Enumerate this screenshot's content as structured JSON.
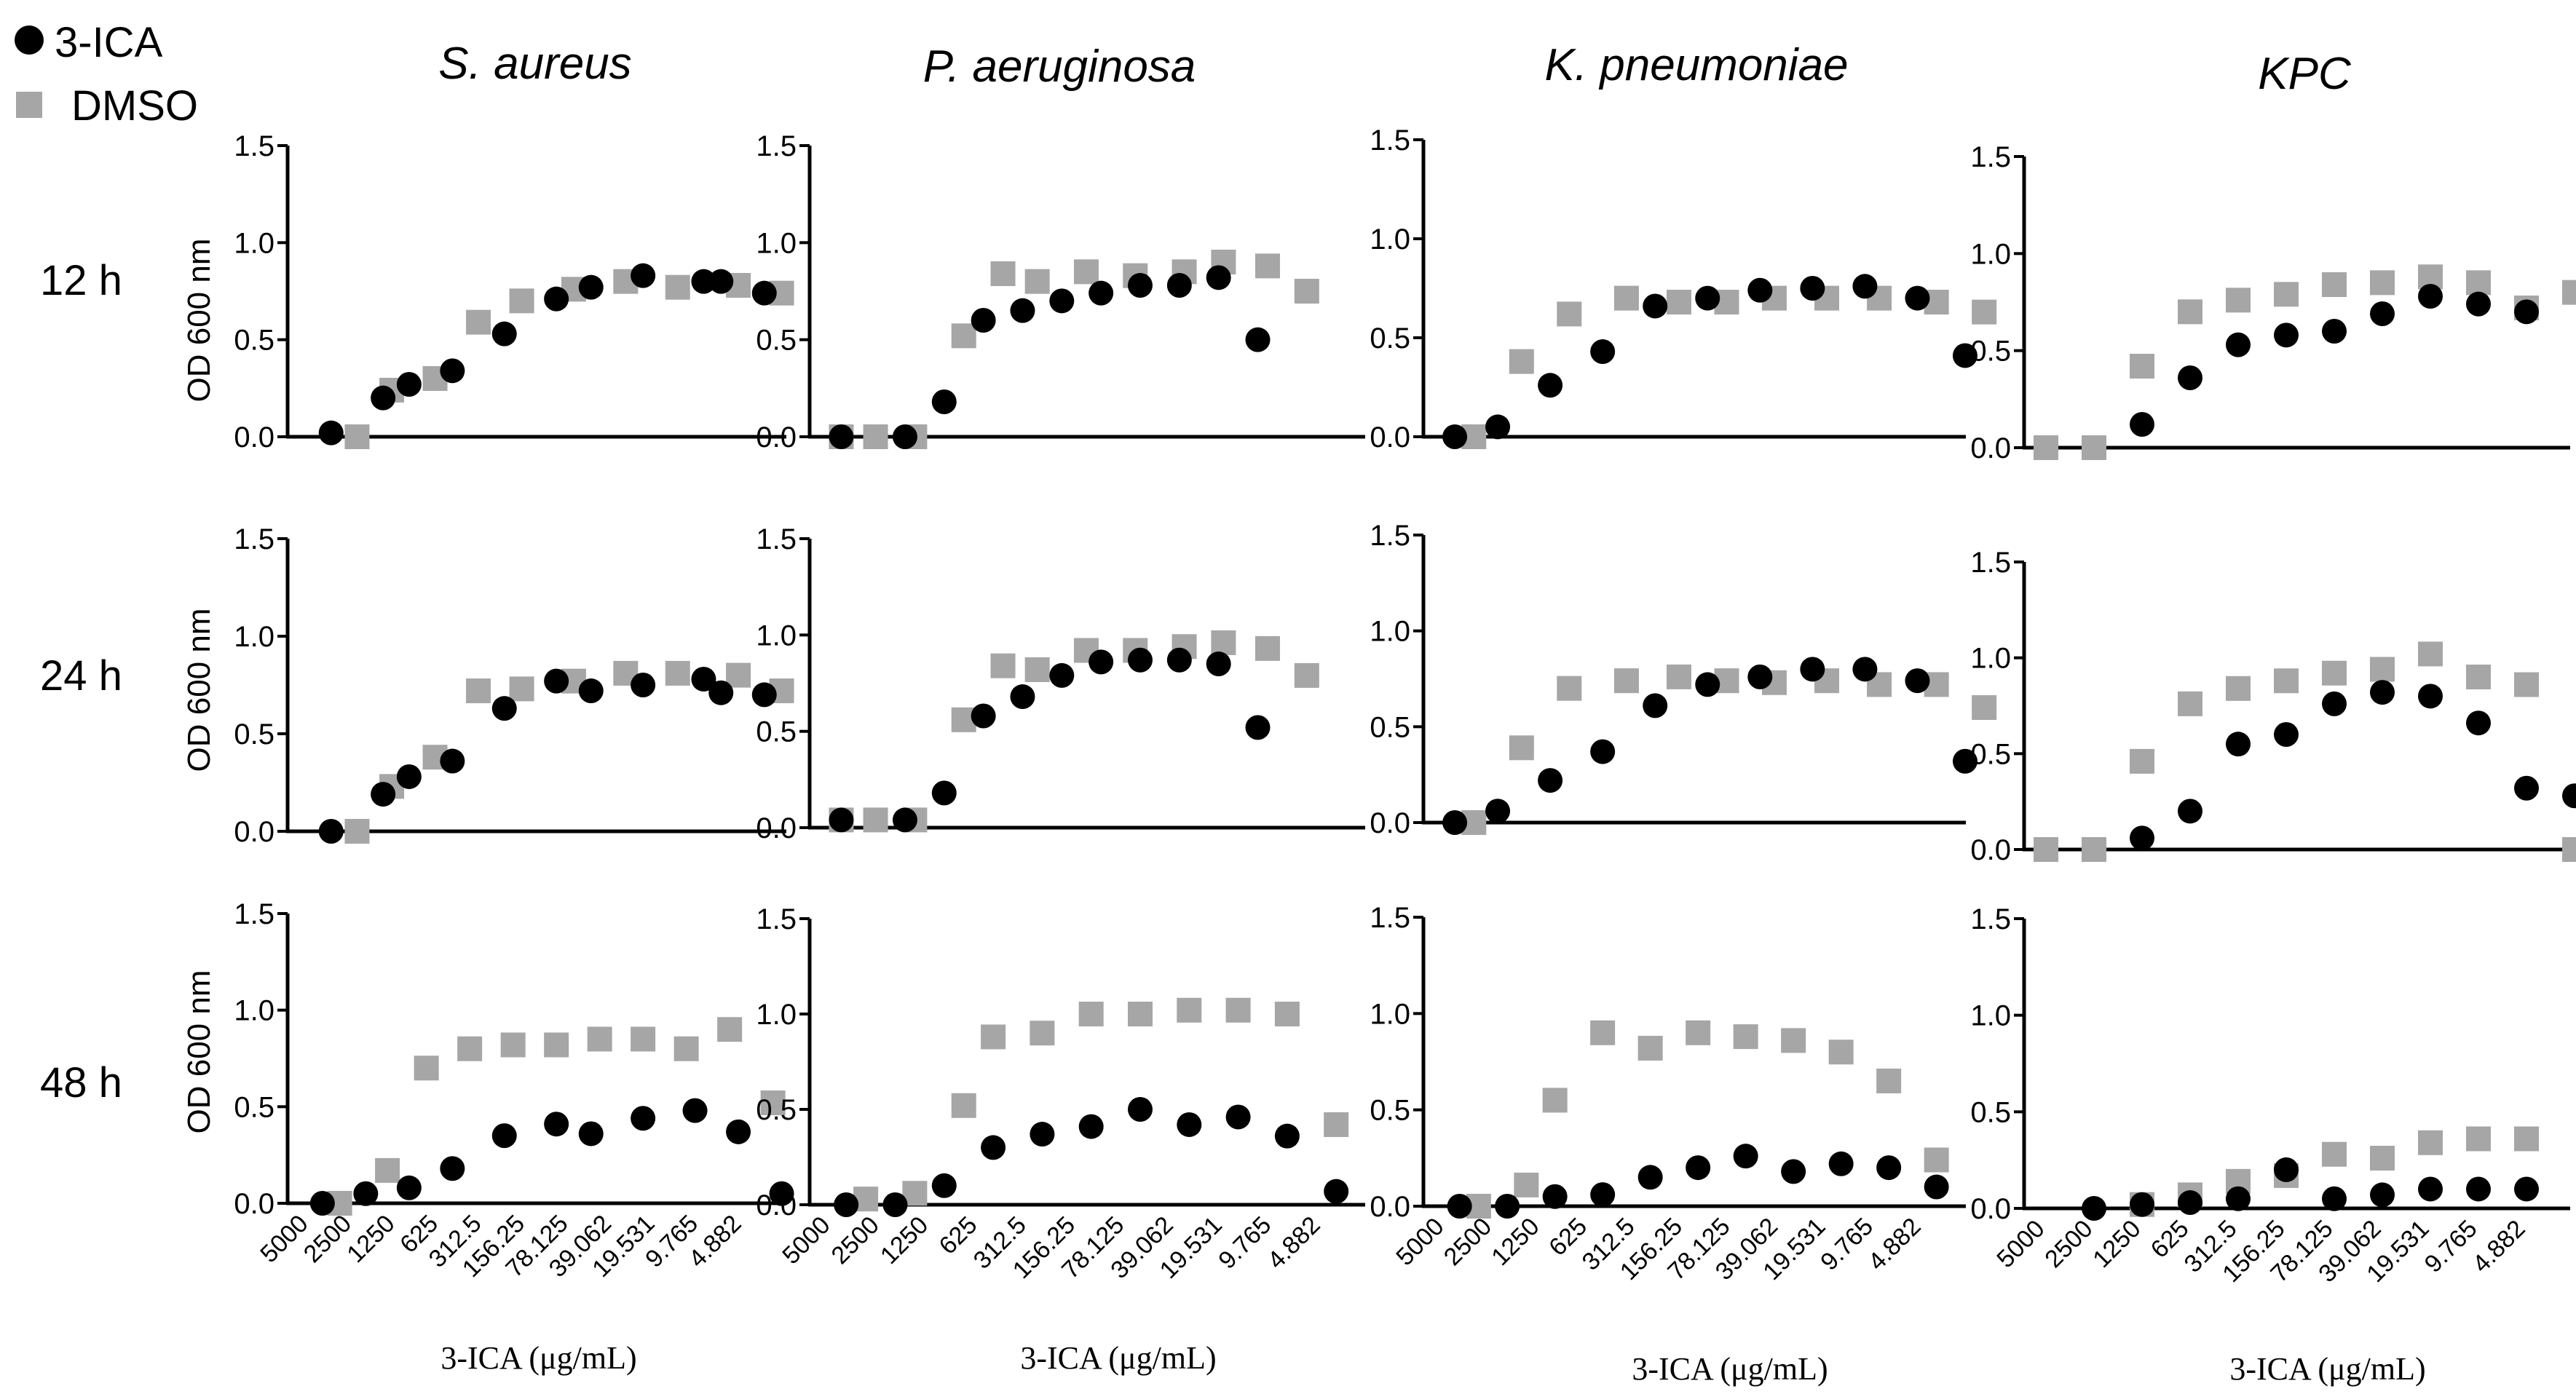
{
  "chart_data": {
    "type": "scatter",
    "legend": [
      {
        "name": "3-ICA",
        "marker": "circle",
        "color": "#000000"
      },
      {
        "name": "DMSO",
        "marker": "square",
        "color": "#a6a6a6"
      }
    ],
    "columns": [
      "S. aureus",
      "P. aeruginosa",
      "K. pneumoniae",
      "KPC"
    ],
    "rows": [
      "12 h",
      "24 h",
      "48 h"
    ],
    "ylabel": "OD 600 nm",
    "xlabel": "3-ICA (μg/mL)",
    "x_categories": [
      "5000",
      "2500",
      "1250",
      "625",
      "312.5",
      "156.25",
      "78.125",
      "39.062",
      "19.531",
      "9.765",
      "4.882"
    ],
    "ylim": [
      0,
      1.5
    ],
    "yticks": [
      "0.0",
      "0.5",
      "1.0",
      "1.5"
    ],
    "panels": [
      {
        "organism": "S. aureus",
        "time": "12 h",
        "ica_x": [
          0.5,
          1.7,
          2.3,
          3.3,
          4.5,
          5.7,
          6.5,
          7.7,
          9.1,
          9.5,
          10.5
        ],
        "ica": [
          0.02,
          0.2,
          0.27,
          0.34,
          0.53,
          0.71,
          0.77,
          0.83,
          0.8,
          0.8,
          0.74
        ],
        "dmso_x": [
          1.1,
          1.9,
          2.9,
          3.9,
          4.9,
          6.1,
          7.3,
          8.5,
          9.9,
          10.9
        ],
        "dmso": [
          0.0,
          0.24,
          0.3,
          0.59,
          0.7,
          0.76,
          0.8,
          0.77,
          0.78,
          0.74
        ]
      },
      {
        "organism": "P. aeruginosa",
        "time": "12 h",
        "ica_x": [
          0.2,
          1.5,
          2.3,
          3.1,
          3.9,
          4.7,
          5.5,
          6.3,
          7.1,
          7.9,
          8.7
        ],
        "ica": [
          0.0,
          0.0,
          0.18,
          0.6,
          0.65,
          0.7,
          0.74,
          0.78,
          0.78,
          0.82,
          0.5
        ],
        "dmso_x": [
          0.2,
          0.9,
          1.7,
          2.7,
          3.5,
          4.2,
          5.2,
          6.2,
          7.2,
          8.0,
          8.9,
          9.7
        ],
        "dmso": [
          0.0,
          0.0,
          0.0,
          0.52,
          0.84,
          0.8,
          0.85,
          0.83,
          0.85,
          0.9,
          0.88,
          0.75
        ]
      },
      {
        "organism": "K. pneumoniae",
        "time": "12 h",
        "ica_x": [
          0.2,
          1.1,
          2.2,
          3.3,
          4.4,
          5.5,
          6.6,
          7.7,
          8.8,
          9.9,
          10.9
        ],
        "ica": [
          0.0,
          0.05,
          0.26,
          0.43,
          0.66,
          0.7,
          0.74,
          0.75,
          0.76,
          0.7,
          0.41
        ],
        "dmso_x": [
          0.6,
          1.6,
          2.6,
          3.8,
          4.9,
          5.9,
          6.9,
          8.0,
          9.1,
          10.3,
          11.3
        ],
        "dmso": [
          0.0,
          0.38,
          0.62,
          0.7,
          0.68,
          0.68,
          0.7,
          0.7,
          0.7,
          0.68,
          0.63
        ]
      },
      {
        "organism": "KPC",
        "time": "12 h",
        "ica_x": [
          2.0,
          3.0,
          4.0,
          5.0,
          6.0,
          7.0,
          8.0,
          9.0,
          10.0
        ],
        "ica": [
          0.12,
          0.36,
          0.53,
          0.58,
          0.6,
          0.69,
          0.78,
          0.74,
          0.7
        ],
        "dmso_x": [
          0.0,
          1.0,
          2.0,
          3.0,
          4.0,
          5.0,
          6.0,
          7.0,
          8.0,
          9.0,
          10.0,
          11.0
        ],
        "dmso": [
          0.0,
          0.0,
          0.42,
          0.7,
          0.76,
          0.79,
          0.84,
          0.85,
          0.88,
          0.85,
          0.72,
          0.8
        ]
      },
      {
        "organism": "S. aureus",
        "time": "24 h",
        "ica_x": [
          0.5,
          1.7,
          2.3,
          3.3,
          4.5,
          5.7,
          6.5,
          7.7,
          9.1,
          9.5,
          10.5
        ],
        "ica": [
          0.0,
          0.19,
          0.28,
          0.36,
          0.63,
          0.77,
          0.72,
          0.75,
          0.78,
          0.71,
          0.7
        ],
        "dmso_x": [
          1.1,
          1.9,
          2.9,
          3.9,
          4.9,
          6.1,
          7.3,
          8.5,
          9.9,
          10.9
        ],
        "dmso": [
          0.0,
          0.23,
          0.38,
          0.72,
          0.73,
          0.77,
          0.81,
          0.81,
          0.8,
          0.72
        ]
      },
      {
        "organism": "P. aeruginosa",
        "time": "24 h",
        "ica_x": [
          0.2,
          1.5,
          2.3,
          3.1,
          3.9,
          4.7,
          5.5,
          6.3,
          7.1,
          7.9,
          8.7
        ],
        "ica": [
          0.04,
          0.04,
          0.18,
          0.58,
          0.68,
          0.79,
          0.86,
          0.87,
          0.87,
          0.85,
          0.52
        ],
        "dmso_x": [
          0.2,
          0.9,
          1.7,
          2.7,
          3.5,
          4.2,
          5.2,
          6.2,
          7.2,
          8.0,
          8.9,
          9.7
        ],
        "dmso": [
          0.04,
          0.04,
          0.04,
          0.56,
          0.84,
          0.82,
          0.92,
          0.92,
          0.94,
          0.96,
          0.93,
          0.79
        ]
      },
      {
        "organism": "K. pneumoniae",
        "time": "24 h",
        "ica_x": [
          0.2,
          1.1,
          2.2,
          3.3,
          4.4,
          5.5,
          6.6,
          7.7,
          8.8,
          9.9,
          10.9
        ],
        "ica": [
          0.0,
          0.06,
          0.22,
          0.37,
          0.61,
          0.72,
          0.76,
          0.8,
          0.8,
          0.74,
          0.32
        ],
        "dmso_x": [
          0.6,
          1.6,
          2.6,
          3.8,
          4.9,
          5.9,
          6.9,
          8.0,
          9.1,
          10.3,
          11.3
        ],
        "dmso": [
          0.0,
          0.39,
          0.7,
          0.74,
          0.76,
          0.74,
          0.73,
          0.74,
          0.72,
          0.72,
          0.6
        ]
      },
      {
        "organism": "KPC",
        "time": "24 h",
        "ica_x": [
          2.0,
          3.0,
          4.0,
          5.0,
          6.0,
          7.0,
          8.0,
          9.0,
          10.0,
          11.0
        ],
        "ica": [
          0.06,
          0.2,
          0.55,
          0.6,
          0.76,
          0.82,
          0.8,
          0.66,
          0.32,
          0.28
        ],
        "dmso_x": [
          0.0,
          1.0,
          2.0,
          3.0,
          4.0,
          5.0,
          6.0,
          7.0,
          8.0,
          9.0,
          10.0,
          11.0
        ],
        "dmso": [
          0.0,
          0.0,
          0.46,
          0.76,
          0.84,
          0.88,
          0.92,
          0.94,
          1.02,
          0.9,
          0.86,
          0.0
        ]
      },
      {
        "organism": "S. aureus",
        "time": "48 h",
        "ica_x": [
          0.3,
          1.3,
          2.3,
          3.3,
          4.5,
          5.7,
          6.5,
          7.7,
          8.9,
          9.9,
          10.9
        ],
        "ica": [
          0.0,
          0.05,
          0.08,
          0.18,
          0.35,
          0.41,
          0.36,
          0.44,
          0.48,
          0.37,
          0.05
        ],
        "dmso_x": [
          0.7,
          1.8,
          2.7,
          3.7,
          4.7,
          5.7,
          6.7,
          7.7,
          8.7,
          9.7,
          10.7
        ],
        "dmso": [
          0.0,
          0.17,
          0.7,
          0.8,
          0.82,
          0.82,
          0.85,
          0.85,
          0.8,
          0.9,
          0.52
        ]
      },
      {
        "organism": "P. aeruginosa",
        "time": "48 h",
        "ica_x": [
          0.3,
          1.3,
          2.3,
          3.3,
          4.3,
          5.3,
          6.3,
          7.3,
          8.3,
          9.3,
          10.3
        ],
        "ica": [
          0.0,
          0.0,
          0.1,
          0.3,
          0.37,
          0.41,
          0.5,
          0.42,
          0.46,
          0.36,
          0.07
        ],
        "dmso_x": [
          0.7,
          1.7,
          2.7,
          3.3,
          4.3,
          5.3,
          6.3,
          7.3,
          8.3,
          9.3,
          10.3
        ],
        "dmso": [
          0.03,
          0.06,
          0.52,
          0.88,
          0.9,
          1.0,
          1.0,
          1.02,
          1.02,
          1.0,
          0.42
        ]
      },
      {
        "organism": "K. pneumoniae",
        "time": "48 h",
        "ica_x": [
          0.3,
          1.3,
          2.3,
          3.3,
          4.3,
          5.3,
          6.3,
          7.3,
          8.3,
          9.3,
          10.3
        ],
        "ica": [
          0.0,
          0.0,
          0.05,
          0.06,
          0.15,
          0.2,
          0.26,
          0.18,
          0.22,
          0.2,
          0.1
        ],
        "dmso_x": [
          0.7,
          1.7,
          2.3,
          3.3,
          4.3,
          5.3,
          6.3,
          7.3,
          8.3,
          9.3,
          10.3
        ],
        "dmso": [
          0.0,
          0.11,
          0.55,
          0.9,
          0.82,
          0.9,
          0.88,
          0.86,
          0.8,
          0.65,
          0.24
        ]
      },
      {
        "organism": "KPC",
        "time": "48 h",
        "ica_x": [
          1.0,
          2.0,
          3.0,
          4.0,
          5.0,
          6.0,
          7.0,
          8.0,
          9.0,
          10.0
        ],
        "ica": [
          0.0,
          0.02,
          0.03,
          0.05,
          0.2,
          0.05,
          0.07,
          0.1,
          0.1,
          0.1
        ],
        "dmso_x": [
          2.0,
          3.0,
          4.0,
          5.0,
          6.0,
          7.0,
          8.0,
          9.0,
          10.0
        ],
        "dmso": [
          0.02,
          0.07,
          0.14,
          0.17,
          0.28,
          0.26,
          0.34,
          0.36,
          0.36
        ]
      }
    ]
  },
  "colors": {
    "ica": "#000000",
    "dmso": "#a6a6a6",
    "axis": "#000000"
  }
}
